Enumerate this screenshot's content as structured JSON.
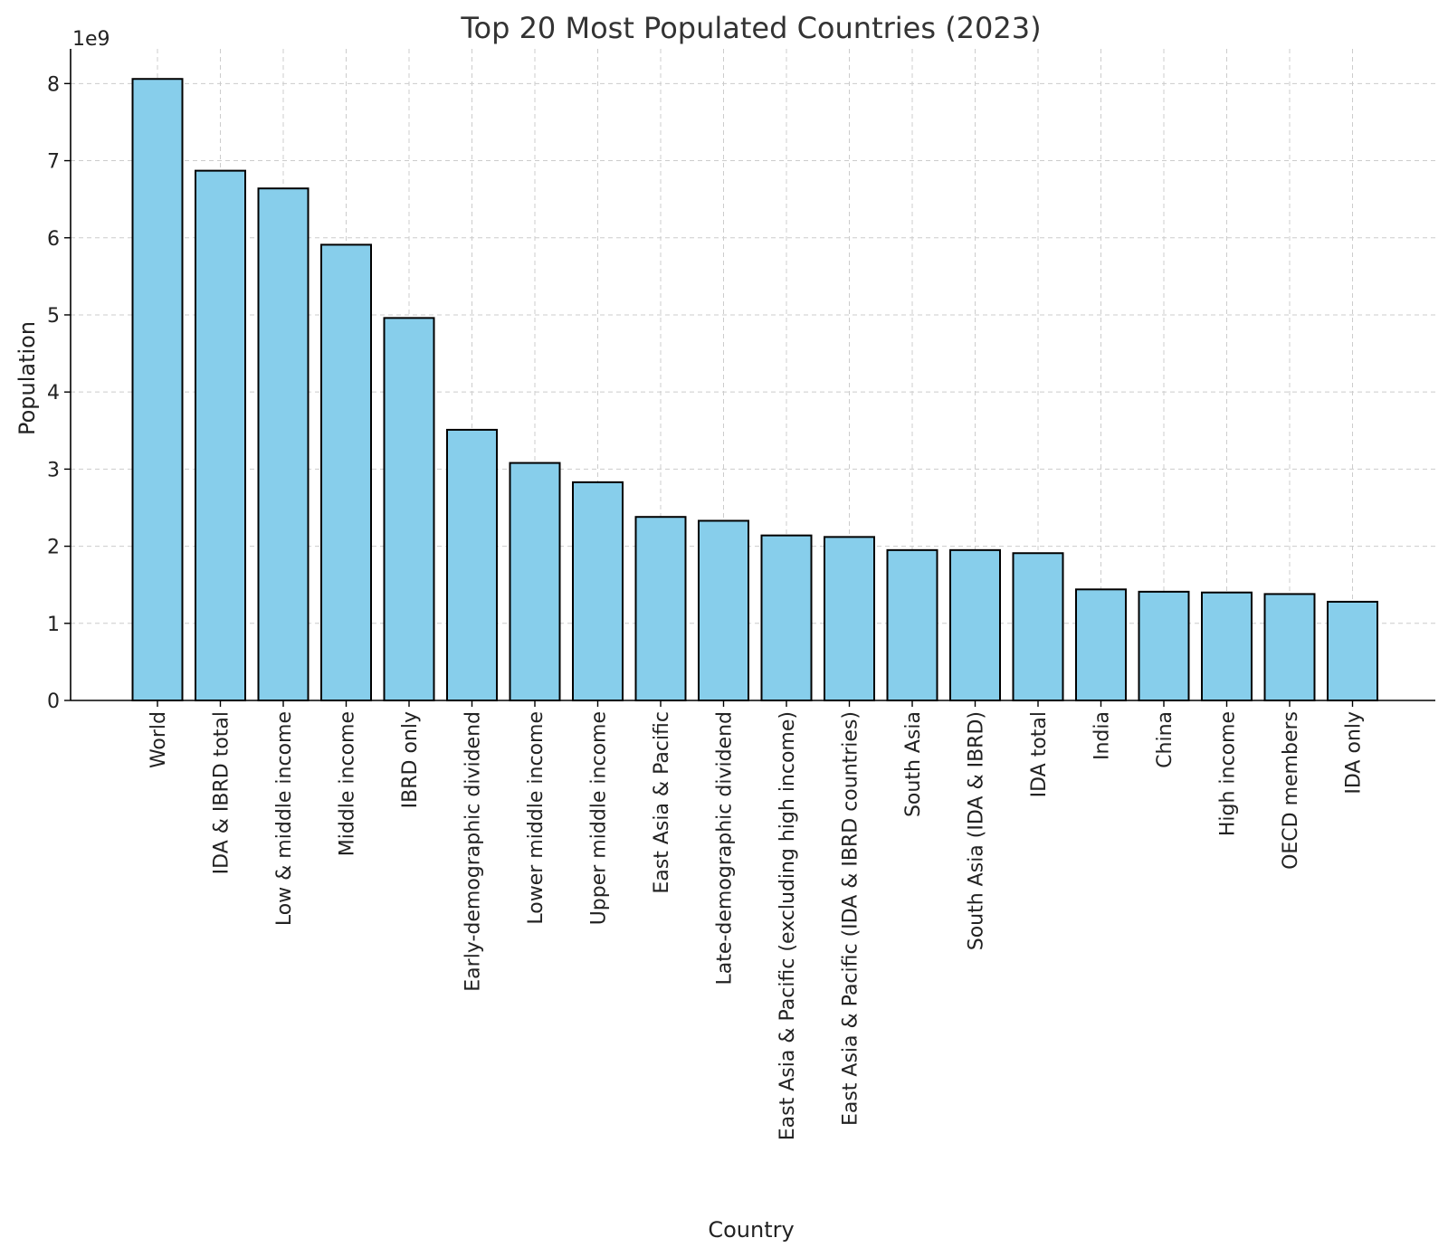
{
  "chart_data": {
    "type": "bar",
    "title": "Top 20 Most Populated Countries (2023)",
    "xlabel": "Country",
    "ylabel": "Population",
    "y_offset_label": "1e9",
    "ylim": [
      0,
      8.45
    ],
    "y_ticks": [
      0,
      1,
      2,
      3,
      4,
      5,
      6,
      7,
      8
    ],
    "grid": true,
    "bar_color": "#87CEEB",
    "edge_color": "#000000",
    "categories": [
      "World",
      "IDA & IBRD total",
      "Low & middle income",
      "Middle income",
      "IBRD only",
      "Early-demographic dividend",
      "Lower middle income",
      "Upper middle income",
      "East Asia & Pacific",
      "Late-demographic dividend",
      "East Asia & Pacific (excluding high income)",
      "East Asia & Pacific (IDA & IBRD countries)",
      "South Asia",
      "South Asia (IDA & IBRD)",
      "IDA total",
      "India",
      "China",
      "High income",
      "OECD members",
      "IDA only"
    ],
    "values": [
      8.06,
      6.87,
      6.64,
      5.91,
      4.96,
      3.51,
      3.08,
      2.83,
      2.38,
      2.33,
      2.14,
      2.12,
      1.95,
      1.95,
      1.91,
      1.44,
      1.41,
      1.4,
      1.38,
      1.28
    ],
    "value_unit_multiplier": 1000000000
  }
}
